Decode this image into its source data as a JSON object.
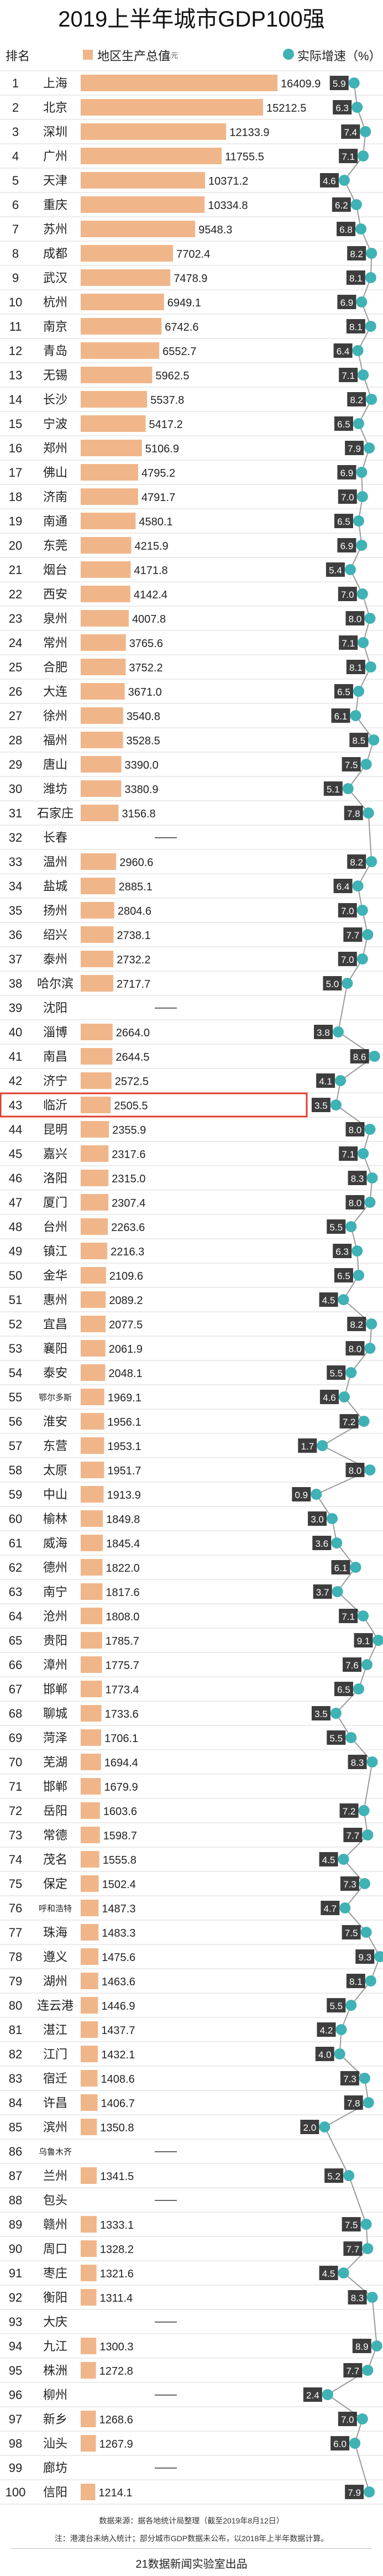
{
  "title": "2019上半年城市GDP100强",
  "legend": {
    "rank_header": "排名",
    "city_header": "",
    "gdp_label": "地区生产总值",
    "gdp_unit": "亿元",
    "growth_label": "实际增速（%）"
  },
  "colors": {
    "bar": "#f0b68a",
    "dot": "#3fb2b6",
    "line": "#9a9a9a",
    "highlight": "#e23b2e"
  },
  "highlight_rank": 43,
  "chart_data": {
    "type": "bar",
    "categories": [
      "上海",
      "北京",
      "深圳",
      "广州",
      "天津",
      "重庆",
      "苏州",
      "成都",
      "武汉",
      "杭州",
      "南京",
      "青岛",
      "无锡",
      "长沙",
      "宁波",
      "郑州",
      "佛山",
      "济南",
      "南通",
      "东莞",
      "烟台",
      "西安",
      "泉州",
      "常州",
      "合肥",
      "大连",
      "徐州",
      "福州",
      "唐山",
      "潍坊",
      "石家庄",
      "长春",
      "温州",
      "盐城",
      "扬州",
      "绍兴",
      "泰州",
      "哈尔滨",
      "沈阳",
      "淄博",
      "南昌",
      "济宁",
      "临沂",
      "昆明",
      "嘉兴",
      "洛阳",
      "厦门",
      "台州",
      "镇江",
      "金华",
      "惠州",
      "宜昌",
      "襄阳",
      "泰安",
      "鄂尔多斯",
      "淮安",
      "东营",
      "太原",
      "中山",
      "榆林",
      "威海",
      "德州",
      "南宁",
      "沧州",
      "贵阳",
      "漳州",
      "邯郸",
      "聊城",
      "菏泽",
      "芜湖",
      "邯郸",
      "岳阳",
      "常德",
      "茂名",
      "保定",
      "呼和浩特",
      "珠海",
      "遵义",
      "湖州",
      "连云港",
      "湛江",
      "江门",
      "宿迁",
      "许昌",
      "滨州",
      "乌鲁木齐",
      "兰州",
      "包头",
      "赣州",
      "周口",
      "枣庄",
      "衡阳",
      "大庆",
      "九江",
      "株洲",
      "柳州",
      "新乡",
      "汕头",
      "廊坊",
      "信阳"
    ],
    "series": [
      {
        "name": "地区生产总值",
        "values": [
          16409.9,
          15212.5,
          12133.9,
          11755.5,
          10371.2,
          10334.8,
          9548.3,
          7702.4,
          7478.9,
          6949.1,
          6742.6,
          6552.7,
          5962.5,
          5537.8,
          5417.2,
          5106.9,
          4795.2,
          4791.7,
          4580.1,
          4215.9,
          4171.8,
          4142.4,
          4007.8,
          3765.6,
          3752.2,
          3671.0,
          3540.8,
          3528.5,
          3390.0,
          3380.9,
          3156.8,
          null,
          2960.6,
          2885.1,
          2804.6,
          2738.1,
          2732.2,
          2717.7,
          null,
          2664.0,
          2644.5,
          2572.5,
          2505.5,
          2355.9,
          2317.6,
          2315.0,
          2307.4,
          2263.6,
          2216.3,
          2109.6,
          2089.2,
          2077.5,
          2061.9,
          2048.1,
          1969.1,
          1956.1,
          1953.1,
          1951.7,
          1913.9,
          1849.8,
          1845.4,
          1822.0,
          1817.6,
          1808.0,
          1785.7,
          1775.7,
          1773.4,
          1733.6,
          1706.1,
          1694.4,
          1679.9,
          1603.6,
          1598.7,
          1555.8,
          1502.4,
          1487.3,
          1483.3,
          1475.6,
          1463.6,
          1446.9,
          1437.7,
          1432.1,
          1408.6,
          1406.7,
          1350.8,
          null,
          1341.5,
          null,
          1333.1,
          1328.2,
          1321.6,
          1311.4,
          null,
          1300.3,
          1272.8,
          null,
          1268.6,
          1267.9,
          null,
          1214.1
        ]
      },
      {
        "name": "实际增速（%）",
        "values": [
          5.9,
          6.3,
          7.4,
          7.1,
          4.6,
          6.2,
          6.8,
          8.2,
          8.1,
          6.9,
          8.1,
          6.4,
          7.1,
          8.2,
          6.5,
          7.9,
          6.9,
          7.0,
          6.5,
          6.9,
          5.4,
          7.0,
          8.0,
          7.1,
          8.1,
          6.5,
          6.1,
          8.5,
          7.5,
          5.1,
          7.8,
          null,
          8.2,
          6.4,
          7.0,
          7.7,
          7.0,
          5.0,
          null,
          3.8,
          8.6,
          4.1,
          3.5,
          8.0,
          7.1,
          8.3,
          8.0,
          5.5,
          6.3,
          6.5,
          4.5,
          8.2,
          8.0,
          5.5,
          4.6,
          7.2,
          1.7,
          8.0,
          0.9,
          3.0,
          3.6,
          6.1,
          3.7,
          7.1,
          9.1,
          7.6,
          6.5,
          3.5,
          5.5,
          8.3,
          null,
          7.2,
          7.7,
          4.5,
          7.3,
          4.7,
          7.5,
          9.3,
          8.1,
          5.5,
          4.2,
          4.0,
          7.3,
          7.8,
          2.0,
          null,
          5.2,
          null,
          7.5,
          7.7,
          4.5,
          8.3,
          null,
          8.9,
          7.7,
          2.4,
          7.0,
          6.0,
          null,
          7.9
        ]
      }
    ]
  },
  "footer": {
    "source": "数据来源：据各地统计局整理（截至2019年8月12日）",
    "note": "注：港澳台未纳入统计；部分城市GDP数据未公布，以2018年上半年数据计算。",
    "credit": "21数据新闻实验室出品"
  }
}
